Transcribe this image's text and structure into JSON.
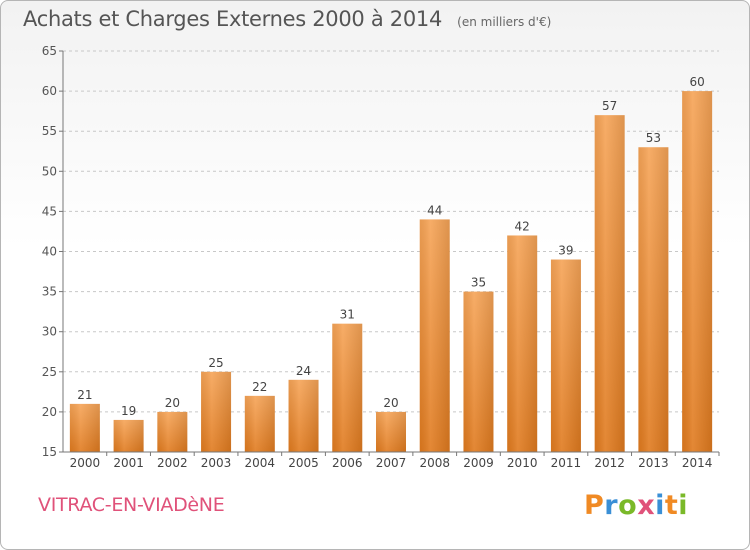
{
  "header": {
    "title": "Achats et Charges Externes 2000 à 2014",
    "unit": "(en milliers d'€)"
  },
  "footer": {
    "commune": "VITRAC-EN-VIADèNE",
    "brand": "Proxiti",
    "brand_letters": [
      "P",
      "r",
      "o",
      "x",
      "i",
      "t",
      "i"
    ],
    "brand_colors": [
      "#f08a24",
      "#3a8fd6",
      "#7ab929",
      "#e0527a",
      "#3a8fd6",
      "#f08a24",
      "#7ab929"
    ]
  },
  "chart_data": {
    "type": "bar",
    "title": "Achats et Charges Externes 2000 à 2014",
    "subtitle": "(en milliers d'€)",
    "xlabel": "",
    "ylabel": "",
    "categories": [
      "2000",
      "2001",
      "2002",
      "2003",
      "2004",
      "2005",
      "2006",
      "2007",
      "2008",
      "2009",
      "2010",
      "2011",
      "2012",
      "2013",
      "2014"
    ],
    "values": [
      21,
      19,
      20,
      25,
      22,
      24,
      31,
      20,
      44,
      35,
      42,
      39,
      57,
      53,
      60
    ],
    "ylim": [
      15,
      65
    ],
    "yticks": [
      15,
      20,
      25,
      30,
      35,
      40,
      45,
      50,
      55,
      60,
      65
    ],
    "grid": "horizontal dashed",
    "bar_color_top": "#f6a457",
    "bar_color_bottom": "#e07a1e"
  }
}
